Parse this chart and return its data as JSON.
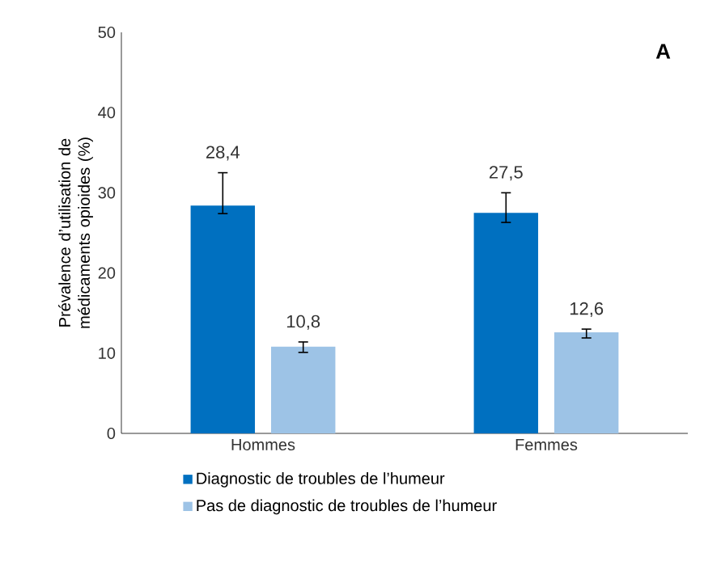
{
  "chart_data": {
    "type": "bar",
    "ylabel": "Prévalence d’utilisation de médicaments opioides (%)",
    "annotations": [
      "A"
    ],
    "categories": [
      "Hommes",
      "Femmes"
    ],
    "series": [
      {
        "name": "Diagnostic de troubles de l’humeur",
        "color": "#0070c0",
        "values": [
          28.4,
          27.5
        ],
        "errors": [
          [
            27.4,
            32.5
          ],
          [
            26.3,
            30.0
          ]
        ],
        "value_labels": [
          "28,4",
          "27,5"
        ]
      },
      {
        "name": "Pas de diagnostic de troubles de l’humeur",
        "color": "#9dc3e6",
        "values": [
          10.8,
          12.6
        ],
        "errors": [
          [
            10.1,
            11.4
          ],
          [
            11.9,
            13.0
          ]
        ],
        "value_labels": [
          "10,8",
          "12,6"
        ]
      }
    ],
    "ylim": [
      0,
      50
    ],
    "yticks": [
      0,
      10,
      20,
      30,
      40,
      50
    ],
    "grid": false,
    "legend": "bottom"
  }
}
